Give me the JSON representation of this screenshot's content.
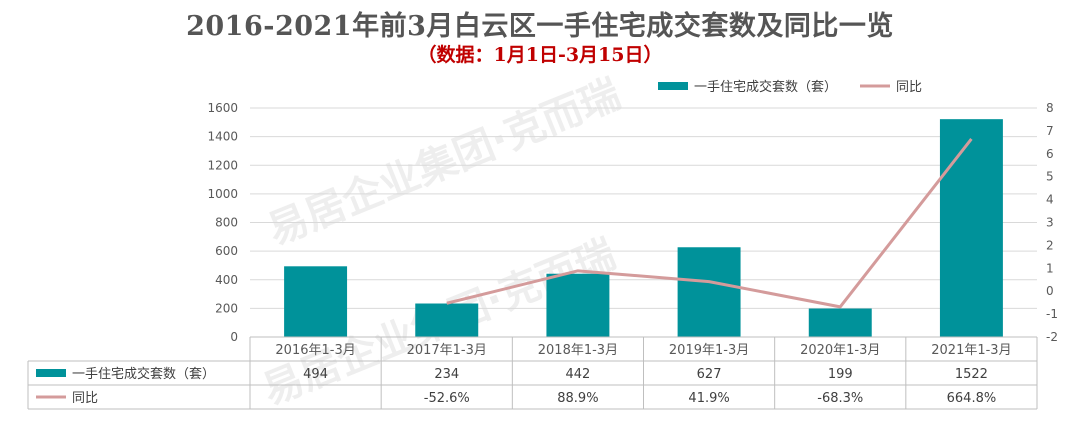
{
  "title": "2016-2021年前3月白云区一手住宅成交套数及同比一览",
  "subtitle": "（数据：1月1日-3月15日）",
  "colors": {
    "bar": "#00929a",
    "line": "#d49b9b",
    "grid": "#d9d9d9",
    "title": "#555555",
    "subtitle": "#c00000"
  },
  "watermark": {
    "text": "易居企业集团·克而瑞",
    "logo_text": "易居"
  },
  "chart_data": {
    "type": "bar",
    "categories": [
      "2016年1-3月",
      "2017年1-3月",
      "2018年1-3月",
      "2019年1-3月",
      "2020年1-3月",
      "2021年1-3月"
    ],
    "series": [
      {
        "name": "一手住宅成交套数（套）",
        "type": "bar",
        "axis": "left",
        "values": [
          494,
          234,
          442,
          627,
          199,
          1522
        ]
      },
      {
        "name": "同比",
        "type": "line",
        "axis": "right",
        "values": [
          null,
          -0.526,
          0.889,
          0.419,
          -0.683,
          6.648
        ]
      }
    ],
    "y_left": {
      "min": 0,
      "max": 1600,
      "ticks": [
        0,
        200,
        400,
        600,
        800,
        1000,
        1200,
        1400,
        1600
      ]
    },
    "y_right": {
      "min": -2,
      "max": 8,
      "ticks": [
        -2,
        -1,
        0,
        1,
        2,
        3,
        4,
        5,
        6,
        7,
        8
      ]
    },
    "grid": true,
    "legend": "top-right",
    "table": [
      {
        "series": "一手住宅成交套数（套）",
        "cells": [
          "494",
          "234",
          "442",
          "627",
          "199",
          "1522"
        ]
      },
      {
        "series": "同比",
        "cells": [
          "",
          "-52.6%",
          "88.9%",
          "41.9%",
          "-68.3%",
          "664.8%"
        ]
      }
    ]
  }
}
